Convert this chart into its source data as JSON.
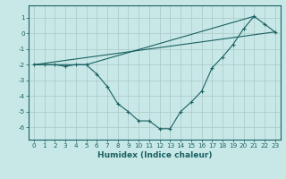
{
  "xlabel": "Humidex (Indice chaleur)",
  "background_color": "#c8e8e8",
  "grid_color": "#b0cccc",
  "line_color": "#1a6060",
  "spine_color": "#1a6060",
  "xlim": [
    -0.5,
    23.5
  ],
  "ylim": [
    -6.8,
    1.8
  ],
  "xticks": [
    0,
    1,
    2,
    3,
    4,
    5,
    6,
    7,
    8,
    9,
    10,
    11,
    12,
    13,
    14,
    15,
    16,
    17,
    18,
    19,
    20,
    21,
    22,
    23
  ],
  "yticks": [
    -6,
    -5,
    -4,
    -3,
    -2,
    -1,
    0,
    1
  ],
  "line1_x": [
    0,
    1,
    2,
    3,
    4,
    5,
    6,
    7,
    8,
    9,
    10,
    11,
    12,
    13,
    14,
    15,
    16,
    17,
    18,
    19,
    20,
    21,
    22,
    23
  ],
  "line1_y": [
    -2.0,
    -2.0,
    -2.0,
    -2.1,
    -2.0,
    -2.0,
    -2.6,
    -3.4,
    -4.5,
    -5.0,
    -5.6,
    -5.6,
    -6.1,
    -6.1,
    -5.0,
    -4.4,
    -3.7,
    -2.2,
    -1.5,
    -0.7,
    0.3,
    1.1,
    0.6,
    0.1
  ],
  "line2_x": [
    0,
    5,
    21
  ],
  "line2_y": [
    -2.0,
    -2.0,
    1.1
  ],
  "line3_x": [
    0,
    23
  ],
  "line3_y": [
    -2.0,
    0.1
  ],
  "fontsize_label": 6.5,
  "fontsize_tick": 5.2,
  "fontsize_xlabel": 6.5,
  "marker": "+"
}
